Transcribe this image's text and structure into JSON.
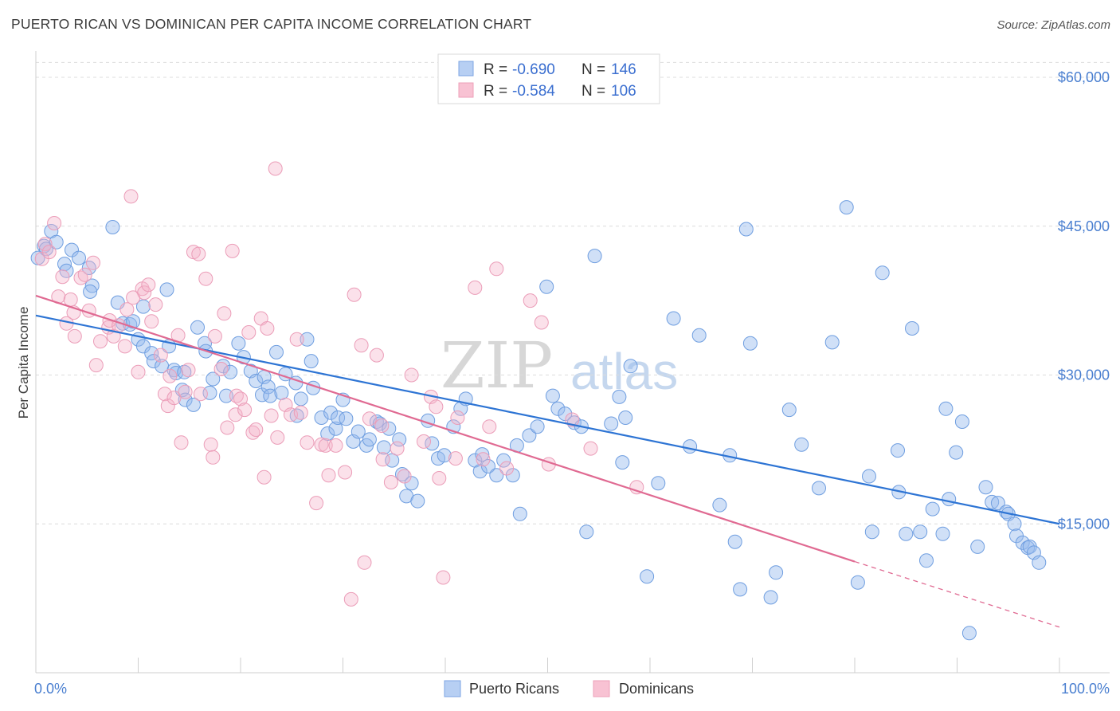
{
  "header": {
    "title": "PUERTO RICAN VS DOMINICAN PER CAPITA INCOME CORRELATION CHART",
    "source": "Source: ZipAtlas.com"
  },
  "watermark": {
    "zip": "ZIP",
    "atlas": "atlas"
  },
  "legend_top": {
    "rows": [
      {
        "r_label": "R =",
        "r_value": "-0.690",
        "n_label": "N =",
        "n_value": "146"
      },
      {
        "r_label": "R =",
        "r_value": "-0.584",
        "n_label": "N =",
        "n_value": "106"
      }
    ]
  },
  "legend_bottom": {
    "items": [
      "Puerto Ricans",
      "Dominicans"
    ]
  },
  "axes": {
    "ylabel": "Per Capita Income",
    "x_min_label": "0.0%",
    "x_max_label": "100.0%",
    "y_ticks": [
      "$15,000",
      "$30,000",
      "$45,000",
      "$60,000"
    ]
  },
  "chart_data": {
    "type": "scatter",
    "xlabel": "",
    "ylabel": "Per Capita Income",
    "xlim": [
      0,
      100
    ],
    "ylim": [
      0,
      62000
    ],
    "grid": true,
    "colors": {
      "Puerto Ricans": "#4f8bdb",
      "Dominicans": "#ec8fae",
      "pr_line": "#2d74d4",
      "dom_line": "#e06a92"
    },
    "series": [
      {
        "name": "Puerto Ricans",
        "stats": {
          "R": -0.69,
          "N": 146
        },
        "trend": {
          "x": [
            0,
            100
          ],
          "y": [
            36000,
            15000
          ]
        },
        "points": [
          [
            0.2,
            41800
          ],
          [
            0.8,
            43000
          ],
          [
            1.0,
            42700
          ],
          [
            1.5,
            44500
          ],
          [
            2.0,
            43400
          ],
          [
            2.8,
            41200
          ],
          [
            3.0,
            40500
          ],
          [
            3.5,
            42600
          ],
          [
            4.2,
            41800
          ],
          [
            5.2,
            40800
          ],
          [
            5.5,
            39000
          ],
          [
            5.3,
            38400
          ],
          [
            7.5,
            44900
          ],
          [
            8.0,
            37300
          ],
          [
            8.5,
            35200
          ],
          [
            9.2,
            35100
          ],
          [
            9.5,
            35400
          ],
          [
            10.5,
            36900
          ],
          [
            10.0,
            33600
          ],
          [
            10.5,
            32900
          ],
          [
            11.3,
            32200
          ],
          [
            11.5,
            31400
          ],
          [
            12.3,
            30900
          ],
          [
            12.8,
            38600
          ],
          [
            13.0,
            32900
          ],
          [
            13.5,
            30500
          ],
          [
            13.7,
            30200
          ],
          [
            14.3,
            28500
          ],
          [
            14.5,
            30300
          ],
          [
            14.6,
            27500
          ],
          [
            15.4,
            27000
          ],
          [
            15.8,
            34800
          ],
          [
            16.5,
            33200
          ],
          [
            16.6,
            32400
          ],
          [
            17.0,
            28200
          ],
          [
            17.3,
            29600
          ],
          [
            18.3,
            30900
          ],
          [
            18.6,
            27900
          ],
          [
            19.0,
            30300
          ],
          [
            19.8,
            33200
          ],
          [
            20.3,
            31800
          ],
          [
            21.0,
            30400
          ],
          [
            21.5,
            29400
          ],
          [
            22.1,
            28000
          ],
          [
            22.3,
            29800
          ],
          [
            22.7,
            28800
          ],
          [
            22.9,
            27900
          ],
          [
            23.5,
            32300
          ],
          [
            24.0,
            28200
          ],
          [
            24.4,
            30100
          ],
          [
            25.4,
            29200
          ],
          [
            25.5,
            25900
          ],
          [
            25.9,
            27600
          ],
          [
            26.5,
            33600
          ],
          [
            26.9,
            31400
          ],
          [
            27.1,
            28700
          ],
          [
            27.9,
            25700
          ],
          [
            28.5,
            24100
          ],
          [
            28.8,
            26200
          ],
          [
            29.3,
            24600
          ],
          [
            29.5,
            25700
          ],
          [
            30.0,
            27500
          ],
          [
            30.3,
            25600
          ],
          [
            31.0,
            23300
          ],
          [
            31.5,
            24300
          ],
          [
            32.3,
            22900
          ],
          [
            32.6,
            23500
          ],
          [
            33.3,
            25300
          ],
          [
            33.6,
            25100
          ],
          [
            34.0,
            22700
          ],
          [
            34.5,
            24600
          ],
          [
            34.8,
            21400
          ],
          [
            35.5,
            23500
          ],
          [
            35.8,
            20000
          ],
          [
            36.2,
            17800
          ],
          [
            36.7,
            19100
          ],
          [
            37.3,
            17300
          ],
          [
            38.3,
            25400
          ],
          [
            38.7,
            23100
          ],
          [
            39.3,
            21600
          ],
          [
            39.9,
            21900
          ],
          [
            40.8,
            24800
          ],
          [
            41.5,
            26600
          ],
          [
            42.0,
            27600
          ],
          [
            42.9,
            21400
          ],
          [
            43.4,
            20300
          ],
          [
            43.6,
            22000
          ],
          [
            44.2,
            20800
          ],
          [
            45.0,
            19900
          ],
          [
            45.7,
            21400
          ],
          [
            46.6,
            19900
          ],
          [
            47.0,
            22900
          ],
          [
            47.3,
            16000
          ],
          [
            48.2,
            23900
          ],
          [
            49.0,
            24800
          ],
          [
            49.9,
            38900
          ],
          [
            50.5,
            27900
          ],
          [
            51.0,
            26600
          ],
          [
            51.7,
            26100
          ],
          [
            52.6,
            25200
          ],
          [
            53.3,
            24800
          ],
          [
            53.8,
            14200
          ],
          [
            54.6,
            42000
          ],
          [
            56.2,
            25100
          ],
          [
            57.0,
            27800
          ],
          [
            57.3,
            21200
          ],
          [
            57.6,
            25700
          ],
          [
            58.1,
            30900
          ],
          [
            59.7,
            9700
          ],
          [
            60.8,
            19100
          ],
          [
            62.3,
            35700
          ],
          [
            63.9,
            22800
          ],
          [
            64.8,
            34000
          ],
          [
            66.8,
            16900
          ],
          [
            67.8,
            21900
          ],
          [
            68.3,
            13200
          ],
          [
            68.8,
            8400
          ],
          [
            69.4,
            44700
          ],
          [
            69.8,
            33200
          ],
          [
            71.8,
            7600
          ],
          [
            72.3,
            10100
          ],
          [
            73.6,
            26500
          ],
          [
            74.8,
            23000
          ],
          [
            76.5,
            18600
          ],
          [
            77.8,
            33300
          ],
          [
            79.2,
            46900
          ],
          [
            80.3,
            9100
          ],
          [
            81.4,
            19800
          ],
          [
            81.7,
            14200
          ],
          [
            82.7,
            40300
          ],
          [
            84.2,
            22400
          ],
          [
            84.3,
            18200
          ],
          [
            85.0,
            14000
          ],
          [
            85.6,
            34700
          ],
          [
            86.4,
            14200
          ],
          [
            87.0,
            11300
          ],
          [
            87.6,
            16500
          ],
          [
            88.6,
            14000
          ],
          [
            88.9,
            26600
          ],
          [
            89.2,
            17500
          ],
          [
            89.9,
            22200
          ],
          [
            90.5,
            25300
          ],
          [
            91.2,
            4000
          ],
          [
            92.0,
            12700
          ],
          [
            92.8,
            18700
          ],
          [
            93.4,
            17200
          ],
          [
            94.0,
            17100
          ],
          [
            94.8,
            16200
          ],
          [
            95.0,
            16000
          ],
          [
            95.6,
            15000
          ],
          [
            95.8,
            13800
          ],
          [
            96.4,
            13100
          ],
          [
            96.9,
            12600
          ],
          [
            97.1,
            12700
          ],
          [
            97.5,
            12100
          ],
          [
            98.0,
            11100
          ]
        ]
      },
      {
        "name": "Dominicans",
        "stats": {
          "R": -0.584,
          "N": 106
        },
        "trend": {
          "x": [
            0,
            80
          ],
          "y": [
            38000,
            11200
          ]
        },
        "trend_extension": {
          "x": [
            80,
            100
          ],
          "y": [
            11200,
            4600
          ]
        },
        "points": [
          [
            0.6,
            41700
          ],
          [
            0.9,
            43200
          ],
          [
            1.3,
            42400
          ],
          [
            1.8,
            45300
          ],
          [
            2.2,
            37900
          ],
          [
            2.6,
            39900
          ],
          [
            3.0,
            35200
          ],
          [
            3.4,
            37600
          ],
          [
            3.7,
            36300
          ],
          [
            3.8,
            33900
          ],
          [
            4.4,
            39800
          ],
          [
            4.8,
            40100
          ],
          [
            5.2,
            36500
          ],
          [
            5.6,
            41300
          ],
          [
            5.9,
            31000
          ],
          [
            6.3,
            33400
          ],
          [
            7.1,
            34800
          ],
          [
            7.2,
            35500
          ],
          [
            7.6,
            33900
          ],
          [
            8.1,
            35000
          ],
          [
            8.7,
            32900
          ],
          [
            8.9,
            36600
          ],
          [
            9.3,
            48000
          ],
          [
            9.5,
            37800
          ],
          [
            10.0,
            30300
          ],
          [
            10.4,
            38700
          ],
          [
            10.6,
            38300
          ],
          [
            11.0,
            39100
          ],
          [
            11.3,
            35400
          ],
          [
            11.7,
            37100
          ],
          [
            12.2,
            32000
          ],
          [
            12.6,
            28100
          ],
          [
            12.9,
            26900
          ],
          [
            13.1,
            29900
          ],
          [
            13.5,
            27700
          ],
          [
            13.9,
            34000
          ],
          [
            14.2,
            23200
          ],
          [
            14.6,
            28300
          ],
          [
            14.9,
            30500
          ],
          [
            15.4,
            42400
          ],
          [
            15.9,
            42200
          ],
          [
            16.1,
            28100
          ],
          [
            16.6,
            39700
          ],
          [
            17.1,
            23000
          ],
          [
            17.3,
            21700
          ],
          [
            17.5,
            33900
          ],
          [
            18.1,
            30600
          ],
          [
            18.4,
            36200
          ],
          [
            18.7,
            24700
          ],
          [
            19.2,
            42500
          ],
          [
            19.5,
            26000
          ],
          [
            19.6,
            27900
          ],
          [
            20.0,
            27600
          ],
          [
            20.4,
            26500
          ],
          [
            20.8,
            34300
          ],
          [
            21.2,
            24200
          ],
          [
            21.5,
            24500
          ],
          [
            22.0,
            35700
          ],
          [
            22.3,
            19700
          ],
          [
            22.6,
            34700
          ],
          [
            23.0,
            25900
          ],
          [
            23.4,
            50800
          ],
          [
            23.6,
            23700
          ],
          [
            24.4,
            27000
          ],
          [
            24.9,
            26000
          ],
          [
            25.5,
            33600
          ],
          [
            25.9,
            26200
          ],
          [
            26.5,
            23200
          ],
          [
            27.4,
            17100
          ],
          [
            27.9,
            23000
          ],
          [
            28.3,
            22900
          ],
          [
            28.6,
            19900
          ],
          [
            29.3,
            22900
          ],
          [
            30.2,
            20200
          ],
          [
            30.8,
            7400
          ],
          [
            31.1,
            38100
          ],
          [
            31.8,
            33000
          ],
          [
            32.1,
            11100
          ],
          [
            32.6,
            25600
          ],
          [
            33.3,
            32000
          ],
          [
            33.8,
            24900
          ],
          [
            33.9,
            21500
          ],
          [
            34.7,
            19200
          ],
          [
            35.3,
            22600
          ],
          [
            36.0,
            19800
          ],
          [
            36.7,
            30000
          ],
          [
            37.9,
            23300
          ],
          [
            38.6,
            27800
          ],
          [
            39.1,
            26800
          ],
          [
            39.4,
            19600
          ],
          [
            39.8,
            9600
          ],
          [
            41.0,
            21600
          ],
          [
            41.2,
            25700
          ],
          [
            42.9,
            38800
          ],
          [
            43.7,
            21500
          ],
          [
            44.3,
            24800
          ],
          [
            45.0,
            40700
          ],
          [
            46.0,
            20600
          ],
          [
            48.3,
            37500
          ],
          [
            49.4,
            35300
          ],
          [
            50.1,
            21000
          ],
          [
            52.4,
            25500
          ],
          [
            54.2,
            22600
          ],
          [
            58.7,
            18700
          ]
        ]
      }
    ]
  }
}
